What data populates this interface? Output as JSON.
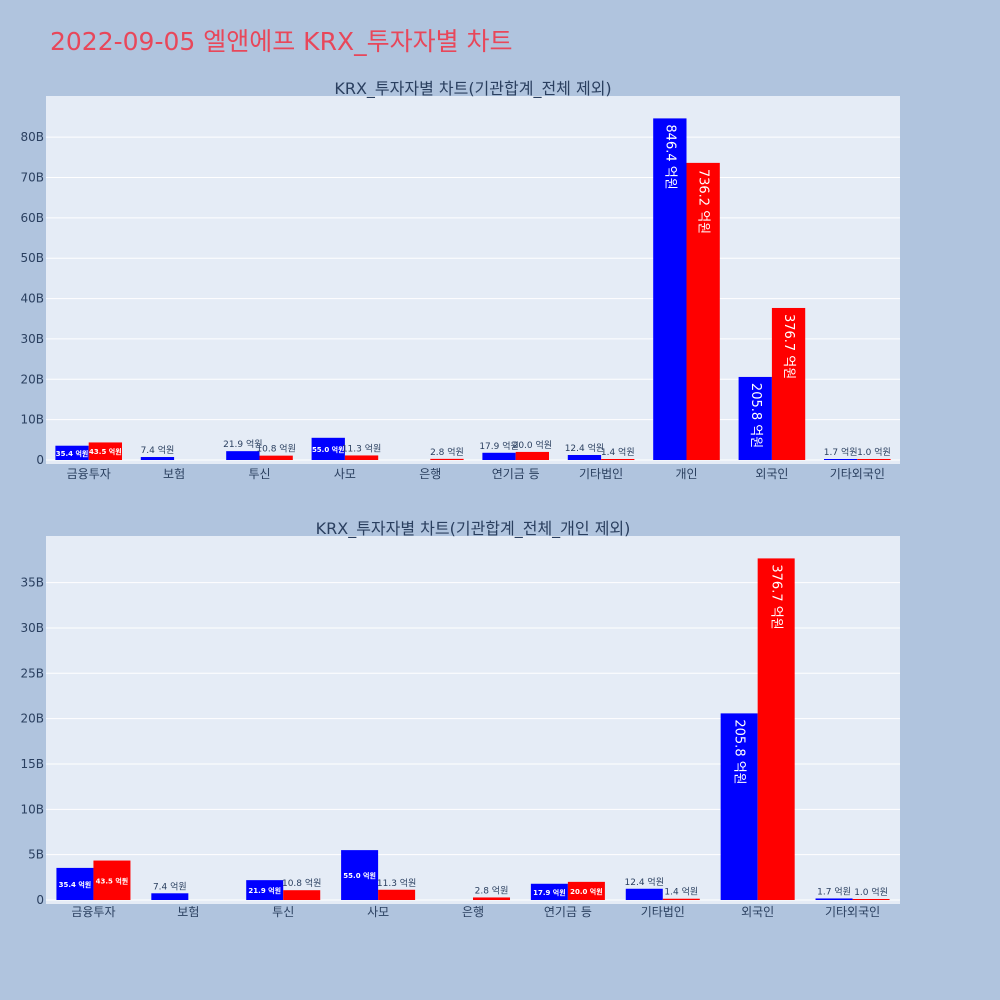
{
  "title": "2022-09-05 엘앤에프 KRX_투자자별 차트",
  "colors": {
    "page_bg": "#b0c4de",
    "plot_bg": "#e5ecf6",
    "title": "#e8475a",
    "buy": "#0000ff",
    "sell": "#ff0000",
    "text": "#2a3f5f"
  },
  "chart_data": [
    {
      "type": "bar",
      "title": "KRX_투자자별 차트(기관합계_전체 제외)",
      "categories": [
        "금융투자",
        "보험",
        "투신",
        "사모",
        "은행",
        "연기금 등",
        "기타법인",
        "개인",
        "외국인",
        "기타외국인"
      ],
      "series": [
        {
          "color": "#0000ff",
          "values": [
            3.54,
            0.74,
            2.19,
            5.5,
            0.0,
            1.79,
            1.24,
            84.64,
            20.58,
            0.17
          ],
          "labels": [
            "35.4 억원",
            "7.4 억원",
            "21.9 억원",
            "55.0 억원",
            "",
            "17.9 억원",
            "12.4 억원",
            "846.4 억원",
            "205.8 억원",
            "1.7 억원"
          ]
        },
        {
          "color": "#ff0000",
          "values": [
            4.35,
            0.0,
            1.08,
            1.13,
            0.28,
            2.0,
            0.14,
            73.62,
            37.67,
            0.1
          ],
          "labels": [
            "43.5 억원",
            "",
            "10.8 억원",
            "11.3 억원",
            "2.8 억원",
            "20.0 억원",
            "1.4 억원",
            "736.2 억원",
            "376.7 억원",
            "1.0 억원"
          ]
        }
      ],
      "yticks": [
        0,
        10,
        20,
        30,
        40,
        50,
        60,
        70,
        80
      ],
      "ytick_labels": [
        "0",
        "10B",
        "20B",
        "30B",
        "40B",
        "50B",
        "60B",
        "70B",
        "80B"
      ],
      "ylim": [
        0,
        89.2
      ],
      "grid": true,
      "legend": "none"
    },
    {
      "type": "bar",
      "title": "KRX_투자자별 차트(기관합계_전체_개인 제외)",
      "categories": [
        "금융투자",
        "보험",
        "투신",
        "사모",
        "은행",
        "연기금 등",
        "기타법인",
        "외국인",
        "기타외국인"
      ],
      "series": [
        {
          "color": "#0000ff",
          "values": [
            3.54,
            0.74,
            2.19,
            5.5,
            0.0,
            1.79,
            1.24,
            20.58,
            0.17
          ],
          "labels": [
            "35.4 억원",
            "7.4 억원",
            "21.9 억원",
            "55.0 억원",
            "",
            "17.9 억원",
            "12.4 억원",
            "205.8 억원",
            "1.7 억원"
          ]
        },
        {
          "color": "#ff0000",
          "values": [
            4.35,
            0.0,
            1.08,
            1.13,
            0.28,
            2.0,
            0.14,
            37.67,
            0.1
          ],
          "labels": [
            "43.5 억원",
            "",
            "10.8 억원",
            "11.3 억원",
            "2.8 억원",
            "20.0 억원",
            "1.4 억원",
            "376.7 억원",
            "1.0 억원"
          ]
        }
      ],
      "yticks": [
        0,
        5,
        10,
        15,
        20,
        25,
        30,
        35
      ],
      "ytick_labels": [
        "0",
        "5B",
        "10B",
        "15B",
        "20B",
        "25B",
        "30B",
        "35B"
      ],
      "ylim": [
        0,
        39.7
      ],
      "grid": true,
      "legend": "none"
    }
  ]
}
